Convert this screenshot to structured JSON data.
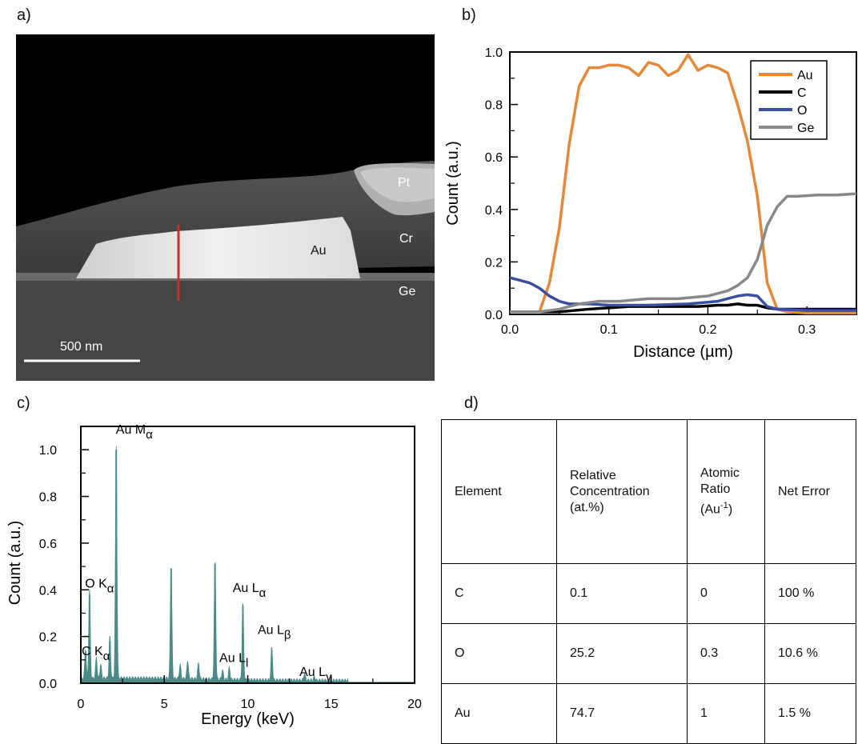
{
  "panels": {
    "a": "a)",
    "b": "b)",
    "c": "c)",
    "d": "d)"
  },
  "sem": {
    "labels": {
      "pt": "Pt",
      "cr": "Cr",
      "au": "Au",
      "ge": "Ge"
    },
    "scale_bar": "500 nm"
  },
  "chart_data": [
    {
      "type": "line",
      "xlabel": "Distance (µm)",
      "ylabel": "Count (a.u.)",
      "xlim": [
        0.0,
        0.35
      ],
      "ylim": [
        0.0,
        1.0
      ],
      "xticks": [
        "0.0",
        "0.1",
        "0.2",
        "0.3"
      ],
      "xtick_values": [
        0.0,
        0.1,
        0.2,
        0.3
      ],
      "yticks": [
        "0.0",
        "0.2",
        "0.4",
        "0.6",
        "0.8",
        "1.0"
      ],
      "ytick_values": [
        0.0,
        0.2,
        0.4,
        0.6,
        0.8,
        1.0
      ],
      "legend_position": "top-right",
      "series": [
        {
          "name": "Au",
          "color": "#e4893a",
          "x": [
            0.0,
            0.03,
            0.04,
            0.05,
            0.06,
            0.07,
            0.08,
            0.09,
            0.1,
            0.11,
            0.12,
            0.13,
            0.14,
            0.15,
            0.16,
            0.17,
            0.18,
            0.19,
            0.2,
            0.21,
            0.22,
            0.23,
            0.24,
            0.25,
            0.26,
            0.27,
            0.28,
            0.3,
            0.35
          ],
          "y": [
            0.01,
            0.01,
            0.12,
            0.33,
            0.65,
            0.87,
            0.94,
            0.94,
            0.95,
            0.95,
            0.94,
            0.91,
            0.96,
            0.95,
            0.91,
            0.93,
            0.99,
            0.93,
            0.95,
            0.94,
            0.92,
            0.8,
            0.66,
            0.45,
            0.12,
            0.02,
            0.01,
            0.005,
            0.005
          ]
        },
        {
          "name": "C",
          "color": "#000000",
          "x": [
            0.0,
            0.05,
            0.08,
            0.12,
            0.16,
            0.19,
            0.21,
            0.22,
            0.23,
            0.24,
            0.25,
            0.26,
            0.27,
            0.3,
            0.35
          ],
          "y": [
            0.01,
            0.01,
            0.02,
            0.03,
            0.03,
            0.03,
            0.035,
            0.035,
            0.04,
            0.035,
            0.035,
            0.025,
            0.02,
            0.02,
            0.02
          ]
        },
        {
          "name": "O",
          "color": "#3b4ea0",
          "x": [
            0.0,
            0.01,
            0.02,
            0.03,
            0.04,
            0.05,
            0.06,
            0.08,
            0.1,
            0.14,
            0.18,
            0.21,
            0.23,
            0.24,
            0.25,
            0.26,
            0.27,
            0.3,
            0.35
          ],
          "y": [
            0.14,
            0.13,
            0.12,
            0.1,
            0.07,
            0.05,
            0.04,
            0.04,
            0.035,
            0.035,
            0.04,
            0.05,
            0.07,
            0.075,
            0.07,
            0.03,
            0.02,
            0.015,
            0.015
          ]
        },
        {
          "name": "Ge",
          "color": "#888888",
          "x": [
            0.0,
            0.03,
            0.05,
            0.07,
            0.09,
            0.11,
            0.14,
            0.17,
            0.2,
            0.21,
            0.22,
            0.23,
            0.24,
            0.25,
            0.26,
            0.27,
            0.28,
            0.29,
            0.31,
            0.33,
            0.35
          ],
          "y": [
            0.01,
            0.01,
            0.02,
            0.04,
            0.05,
            0.05,
            0.06,
            0.06,
            0.07,
            0.08,
            0.09,
            0.11,
            0.14,
            0.21,
            0.34,
            0.41,
            0.45,
            0.45,
            0.455,
            0.455,
            0.46
          ]
        }
      ]
    },
    {
      "type": "area",
      "xlabel": "Energy (keV)",
      "ylabel": "Count (a.u.)",
      "xlim": [
        0,
        20
      ],
      "ylim": [
        0.0,
        1.1
      ],
      "xticks": [
        "0",
        "5",
        "10",
        "15",
        "20"
      ],
      "xtick_values": [
        0,
        5,
        10,
        15,
        20
      ],
      "yticks": [
        "0.0",
        "0.2",
        "0.4",
        "0.6",
        "0.8",
        "1.0"
      ],
      "ytick_values": [
        0.0,
        0.2,
        0.4,
        0.6,
        0.8,
        1.0
      ],
      "fill_color": "#4b8b87",
      "peaks": [
        {
          "energy": 0.28,
          "height": 0.13
        },
        {
          "energy": 0.52,
          "height": 0.38
        },
        {
          "energy": 0.93,
          "height": 0.09
        },
        {
          "energy": 1.19,
          "height": 0.06
        },
        {
          "energy": 1.74,
          "height": 0.18
        },
        {
          "energy": 2.12,
          "height": 1.0
        },
        {
          "energy": 5.41,
          "height": 0.49
        },
        {
          "energy": 5.95,
          "height": 0.06
        },
        {
          "energy": 6.4,
          "height": 0.08
        },
        {
          "energy": 7.05,
          "height": 0.07
        },
        {
          "energy": 8.04,
          "height": 0.51
        },
        {
          "energy": 8.49,
          "height": 0.04
        },
        {
          "energy": 8.9,
          "height": 0.05
        },
        {
          "energy": 9.71,
          "height": 0.33
        },
        {
          "energy": 11.44,
          "height": 0.14
        },
        {
          "energy": 13.4,
          "height": 0.03
        },
        {
          "energy": 14.0,
          "height": 0.015
        }
      ],
      "annotations": [
        {
          "text": "Au M",
          "sub": "α",
          "x": 2.1,
          "y": 1.07
        },
        {
          "text": "O K",
          "sub": "α",
          "x": 0.25,
          "y": 0.41
        },
        {
          "text": "C K",
          "sub": "α",
          "x": 0.05,
          "y": 0.12
        },
        {
          "text": "Au L",
          "sub": "α",
          "x": 9.1,
          "y": 0.39
        },
        {
          "text": "Au L",
          "sub": "β",
          "x": 10.6,
          "y": 0.21
        },
        {
          "text": "Au L",
          "sub": "l",
          "x": 8.3,
          "y": 0.09
        },
        {
          "text": "Au L",
          "sub": "γ",
          "x": 13.1,
          "y": 0.03
        }
      ]
    }
  ],
  "table": {
    "header": {
      "element": "Element",
      "concentration": [
        "Relative",
        "Concentration",
        "(at.%)"
      ],
      "ratio": [
        "Atomic",
        "Ratio",
        "(Au",
        "-1",
        ")"
      ],
      "error": "Net Error"
    },
    "rows": [
      {
        "element": "C",
        "concentration": "0.1",
        "ratio": "0",
        "error": "100 %"
      },
      {
        "element": "O",
        "concentration": "25.2",
        "ratio": "0.3",
        "error": "10.6 %"
      },
      {
        "element": "Au",
        "concentration": "74.7",
        "ratio": "1",
        "error": "1.5 %"
      }
    ]
  }
}
